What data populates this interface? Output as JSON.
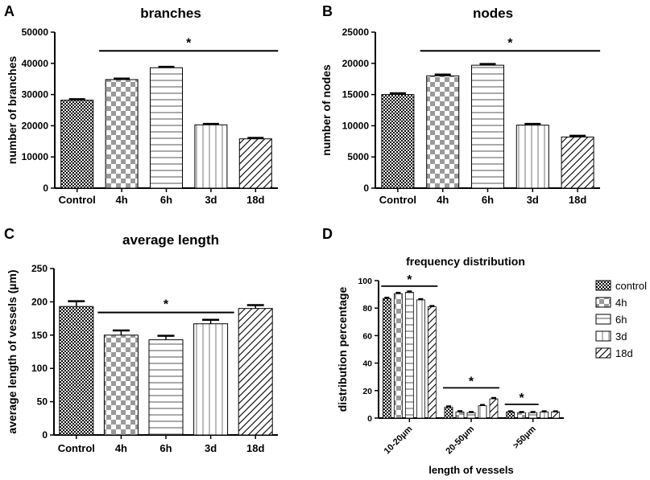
{
  "colors": {
    "ink": "#000000",
    "fill": "#ffffff"
  },
  "chart_data": [
    {
      "id": "A",
      "panel_letter": "A",
      "type": "bar",
      "title": "branches",
      "xlabel": "",
      "ylabel": "number of branches",
      "categories": [
        "Control",
        "4h",
        "6h",
        "3d",
        "18d"
      ],
      "values": [
        28200,
        34800,
        38600,
        20300,
        15800
      ],
      "errors": [
        300,
        300,
        300,
        300,
        300
      ],
      "patterns": [
        "checker",
        "checker-big",
        "hlines",
        "vlines",
        "diag"
      ],
      "ylim": [
        0,
        50000
      ],
      "yticks": [
        0,
        10000,
        20000,
        30000,
        40000,
        50000
      ],
      "ytick_labels": [
        "0",
        "10000",
        "20000",
        "30000",
        "40000",
        "50000"
      ],
      "significance": {
        "label": "*",
        "from": 1,
        "to": 4,
        "y": 44000
      }
    },
    {
      "id": "B",
      "panel_letter": "B",
      "type": "bar",
      "title": "nodes",
      "xlabel": "",
      "ylabel": "number of nodes",
      "categories": [
        "Control",
        "4h",
        "6h",
        "3d",
        "18d"
      ],
      "values": [
        15000,
        18000,
        19700,
        10100,
        8200
      ],
      "errors": [
        200,
        200,
        200,
        200,
        200
      ],
      "patterns": [
        "checker",
        "checker-big",
        "hlines",
        "vlines",
        "diag"
      ],
      "ylim": [
        0,
        25000
      ],
      "yticks": [
        0,
        5000,
        10000,
        15000,
        20000,
        25000
      ],
      "ytick_labels": [
        "0",
        "5000",
        "10000",
        "15000",
        "20000",
        "25000"
      ],
      "significance": {
        "label": "*",
        "from": 1,
        "to": 4,
        "y": 22000
      }
    },
    {
      "id": "C",
      "panel_letter": "C",
      "type": "bar",
      "title": "average length",
      "xlabel": "",
      "ylabel": "average length of vessels (µm)",
      "categories": [
        "Control",
        "4h",
        "6h",
        "3d",
        "18d"
      ],
      "values": [
        193,
        150,
        143,
        167,
        190
      ],
      "errors": [
        8,
        7,
        6,
        6,
        5
      ],
      "patterns": [
        "checker",
        "checker-big",
        "hlines",
        "vlines",
        "diag"
      ],
      "ylim": [
        0,
        250
      ],
      "yticks": [
        0,
        50,
        100,
        150,
        200,
        250
      ],
      "ytick_labels": [
        "0",
        "50",
        "100",
        "150",
        "200",
        "250"
      ],
      "significance": {
        "label": "*",
        "from": 1,
        "to": 3,
        "y": 184
      }
    },
    {
      "id": "D",
      "panel_letter": "D",
      "type": "bar",
      "title": "frequency distribution",
      "xlabel": "length of vessels",
      "ylabel": "distribution percentage",
      "categories": [
        "10-20µm",
        "20-50µm",
        ">50µm"
      ],
      "series": [
        {
          "name": "control",
          "pattern": "checker",
          "values": [
            87,
            8,
            4.5
          ],
          "errors": [
            0.5,
            0.5,
            0.4
          ]
        },
        {
          "name": "4h",
          "pattern": "checker-big",
          "values": [
            90.5,
            4.5,
            4
          ],
          "errors": [
            0.6,
            0.5,
            0.4
          ]
        },
        {
          "name": "6h",
          "pattern": "hlines",
          "values": [
            91.5,
            4,
            4
          ],
          "errors": [
            0.6,
            0.4,
            0.4
          ]
        },
        {
          "name": "3d",
          "pattern": "vlines",
          "values": [
            86,
            9,
            4.5
          ],
          "errors": [
            0.5,
            0.5,
            0.4
          ]
        },
        {
          "name": "18d",
          "pattern": "diag",
          "values": [
            81,
            14,
            4.5
          ],
          "errors": [
            0.5,
            0.6,
            0.4
          ]
        }
      ],
      "ylim": [
        0,
        100
      ],
      "yticks": [
        0,
        20,
        40,
        60,
        80,
        100
      ],
      "ytick_labels": [
        "0",
        "20",
        "40",
        "60",
        "80",
        "100"
      ],
      "legend_position": "right",
      "significance": [
        {
          "label": "*",
          "group": 0,
          "from": 0,
          "to": 4,
          "y": 96
        },
        {
          "label": "*",
          "group": 1,
          "from": 0,
          "to": 4,
          "y": 22
        },
        {
          "label": "*",
          "group": 2,
          "from": 0,
          "to": 2,
          "y": 10
        }
      ]
    }
  ]
}
